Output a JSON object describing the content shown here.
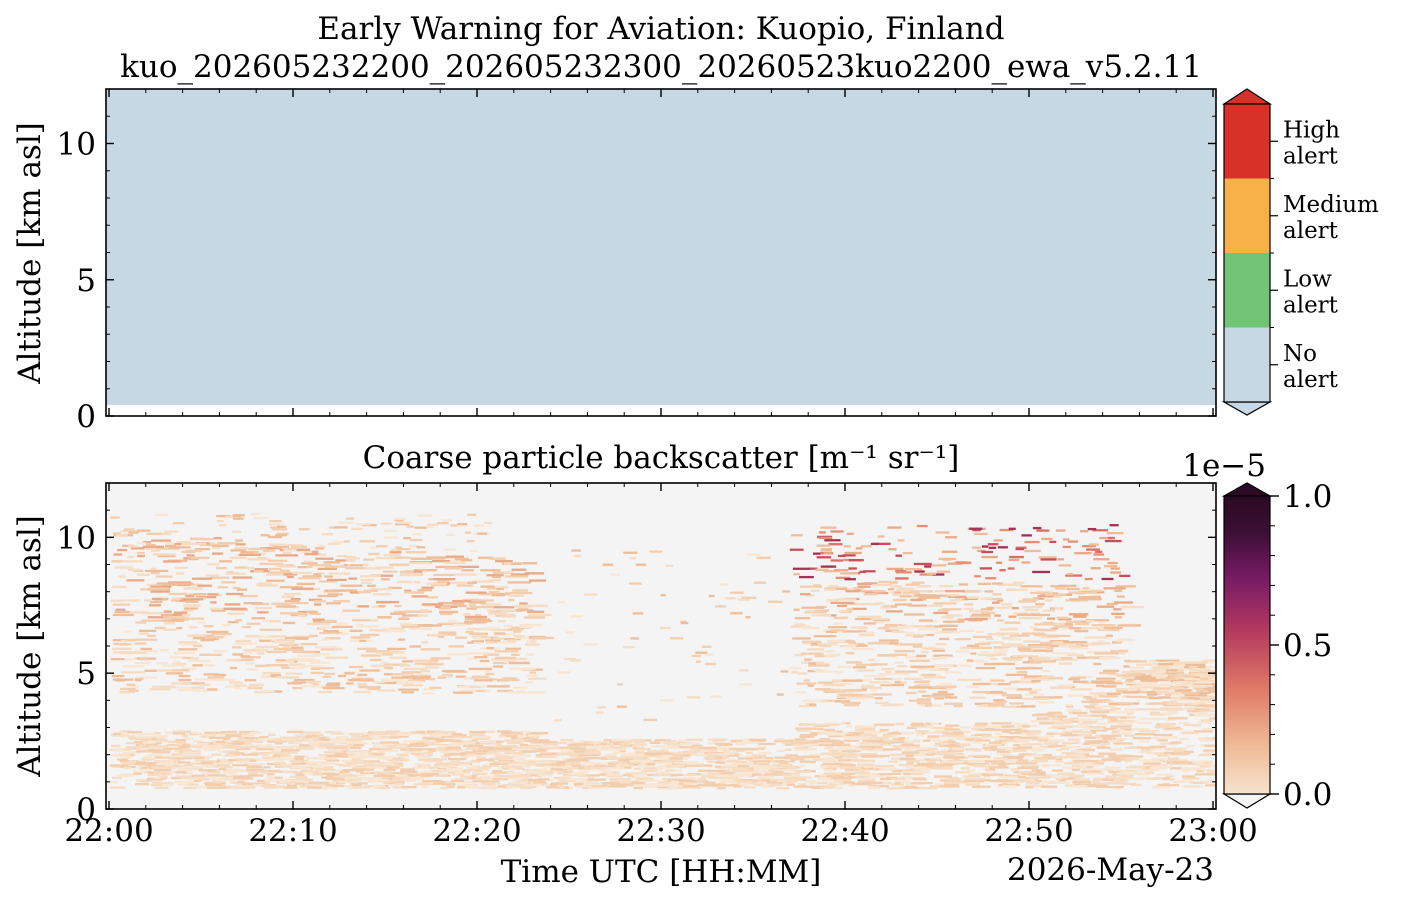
{
  "title": "Early Warning for Aviation: Kuopio, Finland",
  "subtitle": "kuo_202605232200_202605232300_20260523kuo2200_ewa_v5.2.11",
  "chart_data": [
    {
      "type": "heatmap",
      "panel": "alert",
      "ylabel": "Altitude [km asl]",
      "ylim": [
        0,
        12
      ],
      "yticks": [
        "0",
        "5",
        "10"
      ],
      "x_range": [
        "22:00",
        "23:00"
      ],
      "filled_altitude_range_km": [
        0.4,
        12
      ],
      "alert_level": "No alert",
      "colorbar": {
        "levels": [
          {
            "label": "No alert",
            "color": "#c5d8e3"
          },
          {
            "label": "Low alert",
            "color": "#71c473"
          },
          {
            "label": "Medium alert",
            "color": "#f6b149"
          },
          {
            "label": "High alert",
            "color": "#d73128"
          }
        ],
        "label_lines": [
          [
            "No",
            "alert"
          ],
          [
            "Low",
            "alert"
          ],
          [
            "Medium",
            "alert"
          ],
          [
            "High",
            "alert"
          ]
        ]
      }
    },
    {
      "type": "heatmap",
      "panel": "backscatter",
      "title": "Coarse particle backscatter [m⁻¹ sr⁻¹]",
      "xlabel": "Time UTC [HH:MM]",
      "ylabel": "Altitude [km asl]",
      "date_label": "2026-May-23",
      "ylim": [
        0,
        12
      ],
      "yticks": [
        "0",
        "5",
        "10"
      ],
      "xticks": [
        "22:00",
        "22:10",
        "22:20",
        "22:30",
        "22:40",
        "22:50",
        "23:00"
      ],
      "colorbar": {
        "min": 0.0,
        "max": 1.0,
        "scale_label": "1e−5",
        "ticks": [
          "0.0",
          "0.5",
          "1.0"
        ],
        "colors": [
          "#f6e3cf",
          "#efb894",
          "#e07b67",
          "#b3395e",
          "#7a1b66",
          "#3b0f34",
          "#2a0b23"
        ]
      },
      "background_color": "#f4f4f4"
    }
  ]
}
